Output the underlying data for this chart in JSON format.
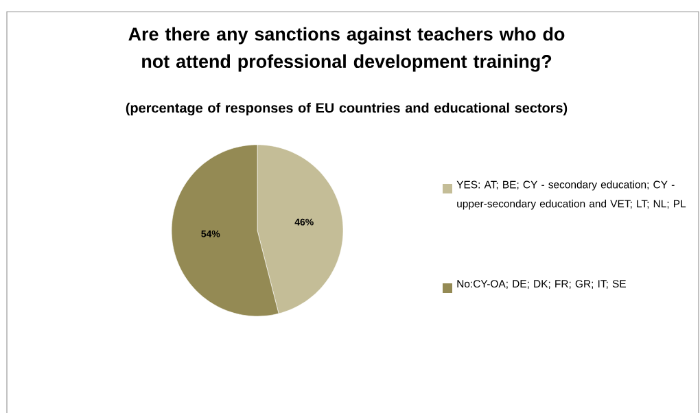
{
  "chart_data": {
    "type": "pie",
    "title": "Are there any sanctions against teachers who do not attend professional development training?",
    "subtitle": "(percentage of responses of EU countries and educational sectors)",
    "categories": [
      "YES: AT; BE; CY - secondary education; CY - upper-secondary education and VET; LT; NL; PL",
      "No:CY-OA; DE; DK; FR; GR; IT; SE"
    ],
    "values": [
      46,
      54
    ],
    "value_labels": [
      "46%",
      "54%"
    ],
    "colors": [
      "#c4bd97",
      "#948a54"
    ],
    "legend": "right"
  }
}
